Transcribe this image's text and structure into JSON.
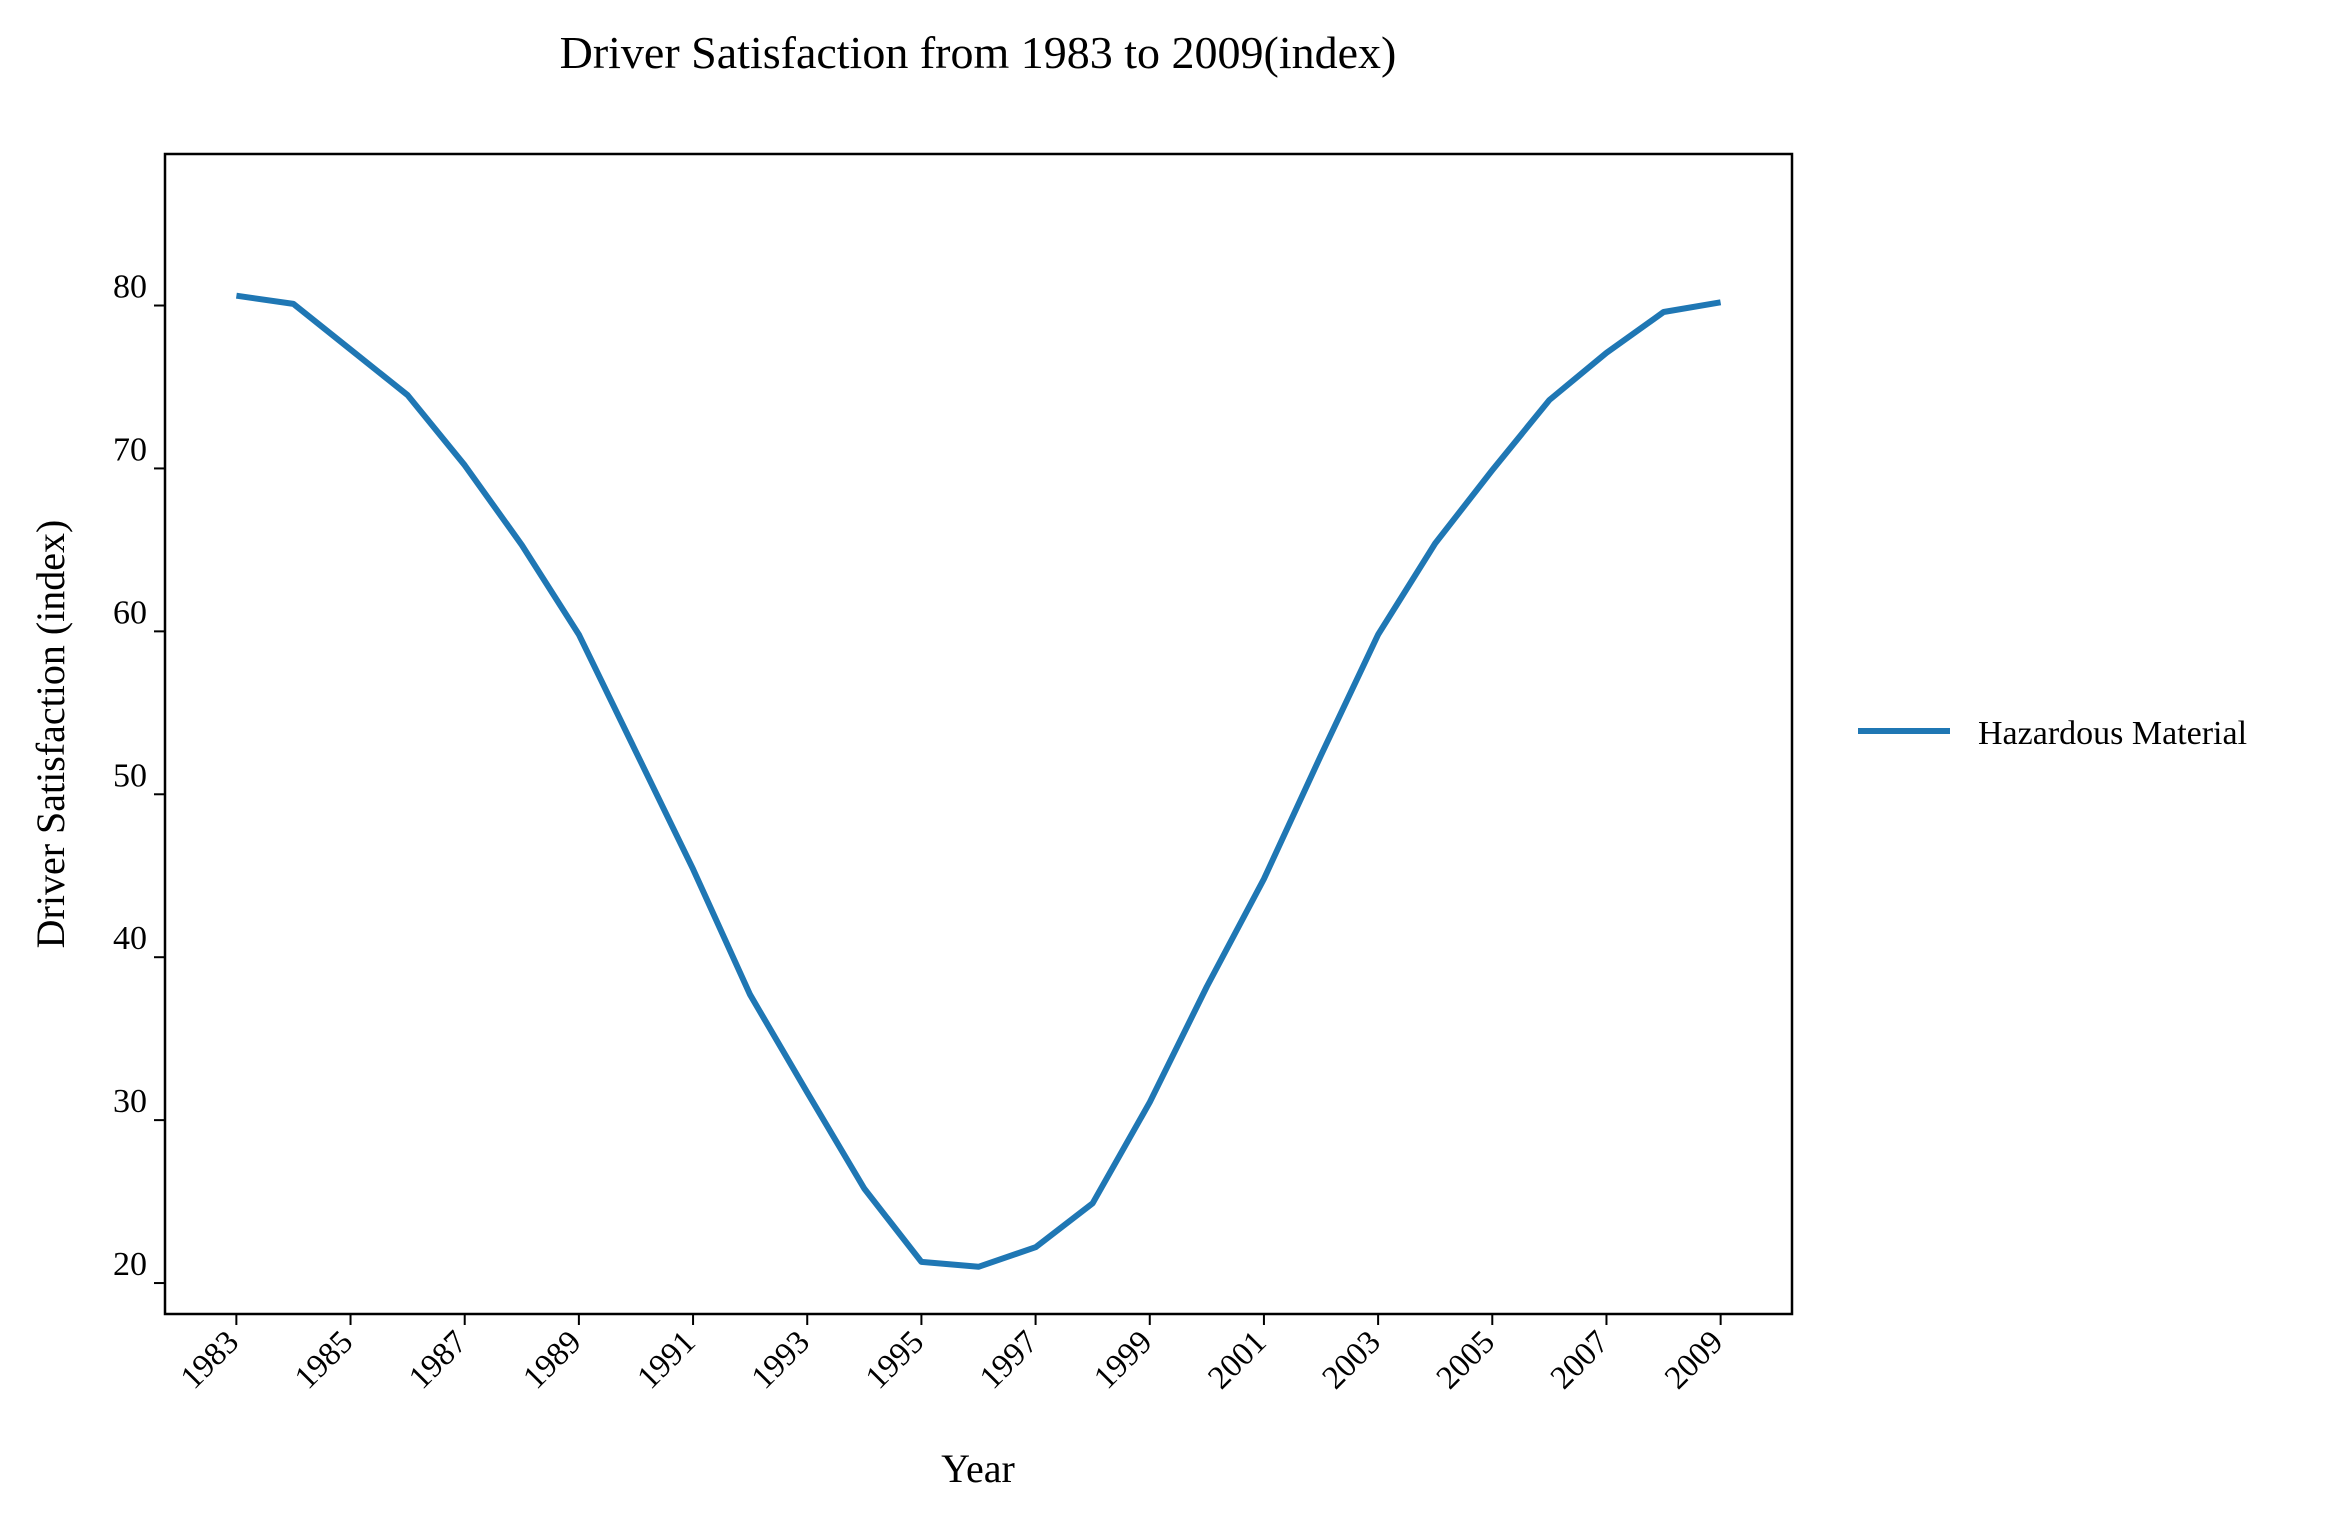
{
  "chart_data": {
    "type": "line",
    "title": "Driver Satisfaction from 1983 to 2009(index)",
    "xlabel": "Year",
    "ylabel": "Driver Satisfaction (index)",
    "xlim": [
      1981.75,
      2010.25
    ],
    "ylim": [
      18.1,
      89.3
    ],
    "x_ticks": [
      "1983",
      "1985",
      "1987",
      "1989",
      "1991",
      "1993",
      "1995",
      "1997",
      "1999",
      "2001",
      "2003",
      "2005",
      "2007",
      "2009"
    ],
    "y_ticks": [
      "20",
      "30",
      "40",
      "50",
      "60",
      "70",
      "80"
    ],
    "x": [
      1983,
      1984,
      1985,
      1986,
      1987,
      1988,
      1989,
      1990,
      1991,
      1992,
      1993,
      1994,
      1995,
      1996,
      1997,
      1998,
      1999,
      2000,
      2001,
      2002,
      2003,
      2004,
      2005,
      2006,
      2007,
      2008,
      2009
    ],
    "series": [
      {
        "name": "Hazardous Material",
        "color": "#1f77b4",
        "values": [
          80.6,
          80.1,
          77.3,
          74.5,
          70.2,
          65.3,
          59.8,
          52.6,
          45.4,
          37.7,
          31.7,
          25.8,
          21.3,
          21.0,
          22.2,
          24.9,
          31.1,
          38.2,
          44.8,
          52.4,
          59.8,
          65.4,
          69.9,
          74.2,
          77.1,
          79.6,
          80.2
        ]
      }
    ],
    "legend_position": "right",
    "grid": false
  }
}
